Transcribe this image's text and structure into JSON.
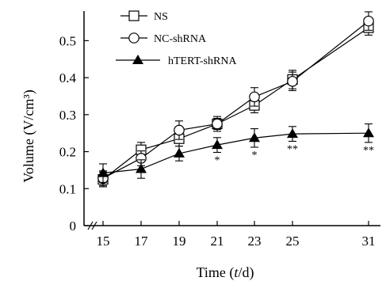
{
  "chart_data": {
    "type": "line",
    "xlabel_prefix": "Time (",
    "xlabel_var": "t",
    "xlabel_suffix": "/d)",
    "ylabel": "Volume (V/cm³)",
    "x": [
      15,
      17,
      19,
      21,
      23,
      25,
      31
    ],
    "x_tick_labels": [
      "15",
      "17",
      "19",
      "21",
      "23",
      "25",
      "31"
    ],
    "y_ticks": [
      0,
      0.1,
      0.2,
      0.3,
      0.4,
      0.5
    ],
    "y_tick_labels": [
      "0",
      "0.1",
      "0.2",
      "0.3",
      "0.4",
      "0.5"
    ],
    "ylim": [
      0,
      0.58
    ],
    "x_axis_break": true,
    "legend_position": "top-left",
    "series": [
      {
        "name": "NS",
        "marker": "open-square",
        "values": [
          0.125,
          0.205,
          0.235,
          0.275,
          0.325,
          0.395,
          0.535
        ],
        "errors": [
          0.02,
          0.02,
          0.02,
          0.015,
          0.02,
          0.025,
          0.02
        ]
      },
      {
        "name": "NC-shRNA",
        "marker": "open-circle",
        "values": [
          0.128,
          0.182,
          0.258,
          0.275,
          0.348,
          0.39,
          0.553
        ],
        "errors": [
          0.02,
          0.02,
          0.025,
          0.02,
          0.025,
          0.025,
          0.025
        ]
      },
      {
        "name": "hTERT-shRNA",
        "marker": "filled-triangle",
        "values": [
          0.142,
          0.153,
          0.195,
          0.218,
          0.237,
          0.248,
          0.25
        ],
        "errors": [
          0.025,
          0.025,
          0.02,
          0.02,
          0.025,
          0.02,
          0.025
        ]
      }
    ],
    "annotations": [
      {
        "x": 21,
        "text": "*"
      },
      {
        "x": 23,
        "text": "*"
      },
      {
        "x": 25,
        "text": "**"
      },
      {
        "x": 31,
        "text": "**"
      }
    ]
  }
}
